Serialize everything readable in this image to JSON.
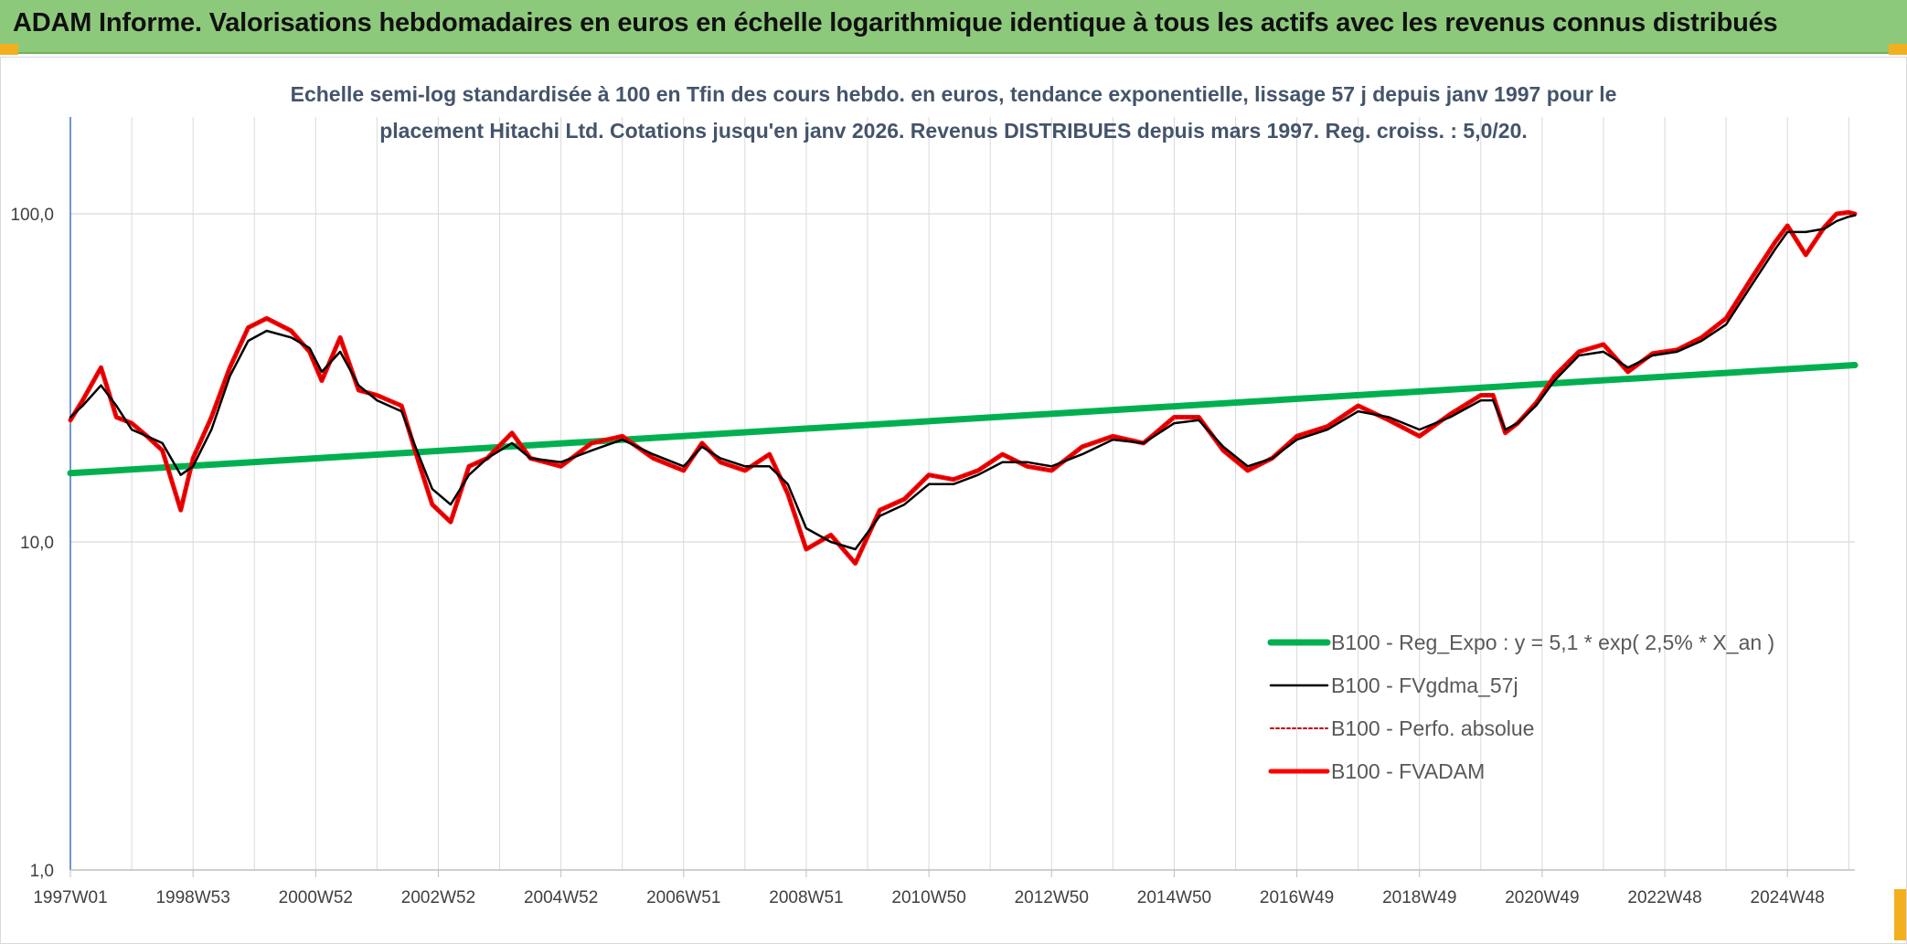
{
  "page": {
    "banner_title": "ADAM Informe. Valorisations hebdomadaires en euros en échelle logarithmique identique à tous les actifs avec les revenus connus distribués",
    "colors": {
      "banner_bg": "#8dc97b",
      "corner_accent": "#f2b01e",
      "regression": "#00b050",
      "moving_average": "#000000",
      "perf_absolue": "#c00000",
      "fvadam": "#ff0000",
      "grid": "#d9d9d9",
      "y_axis": "#4472c4"
    }
  },
  "chart_data": {
    "type": "line",
    "title_line1": "Echelle semi-log standardisée à 100 en Tfin des cours hebdo. en euros, tendance exponentielle, lissage 57 j depuis janv 1997 pour le",
    "title_line2": "placement Hitachi Ltd. Cotations jusqu'en janv 2026. Revenus DISTRIBUES depuis mars 1997. Reg. croiss. : 5,0/20.",
    "y_scale": "log",
    "ylim": [
      1,
      200
    ],
    "yticks": [
      {
        "value": 1,
        "label": "1,0"
      },
      {
        "value": 10,
        "label": "10,0"
      },
      {
        "value": 100,
        "label": "100,0"
      }
    ],
    "xlim": [
      1997.0,
      2026.1
    ],
    "xticks": [
      {
        "value": 1997.0,
        "label": "1997W01"
      },
      {
        "value": 1999.0,
        "label": "1998W53"
      },
      {
        "value": 2001.0,
        "label": "2000W52"
      },
      {
        "value": 2003.0,
        "label": "2002W52"
      },
      {
        "value": 2005.0,
        "label": "2004W52"
      },
      {
        "value": 2007.0,
        "label": "2006W51"
      },
      {
        "value": 2009.0,
        "label": "2008W51"
      },
      {
        "value": 2011.0,
        "label": "2010W50"
      },
      {
        "value": 2013.0,
        "label": "2012W50"
      },
      {
        "value": 2015.0,
        "label": "2014W50"
      },
      {
        "value": 2017.0,
        "label": "2016W49"
      },
      {
        "value": 2019.0,
        "label": "2018W49"
      },
      {
        "value": 2021.0,
        "label": "2020W49"
      },
      {
        "value": 2023.0,
        "label": "2022W48"
      },
      {
        "value": 2025.0,
        "label": "2024W48"
      }
    ],
    "grid": true,
    "legend_position": "bottom-right",
    "series": [
      {
        "name": "B100 - Reg_Expo : y = 5,1 * exp( 2,5% *  X_an )",
        "color": "#00b050",
        "style": "thick",
        "points": [
          [
            1997.0,
            16.2
          ],
          [
            2026.1,
            34.6
          ]
        ]
      },
      {
        "name": "B100 - FVgdma_57j",
        "color": "#000000",
        "style": "thin",
        "points": [
          [
            1997.0,
            24
          ],
          [
            1997.2,
            26
          ],
          [
            1997.5,
            30
          ],
          [
            1997.75,
            26
          ],
          [
            1998.0,
            22
          ],
          [
            1998.25,
            21
          ],
          [
            1998.5,
            20
          ],
          [
            1998.8,
            16
          ],
          [
            1999.0,
            17
          ],
          [
            1999.3,
            22
          ],
          [
            1999.6,
            32
          ],
          [
            1999.9,
            41
          ],
          [
            2000.2,
            44
          ],
          [
            2000.6,
            42
          ],
          [
            2000.9,
            39
          ],
          [
            2001.1,
            33
          ],
          [
            2001.4,
            38
          ],
          [
            2001.7,
            30
          ],
          [
            2002.0,
            27
          ],
          [
            2002.4,
            25
          ],
          [
            2002.7,
            18
          ],
          [
            2002.9,
            14.5
          ],
          [
            2003.2,
            13
          ],
          [
            2003.5,
            16
          ],
          [
            2003.8,
            18
          ],
          [
            2004.2,
            20
          ],
          [
            2004.5,
            18
          ],
          [
            2005.0,
            17.5
          ],
          [
            2005.5,
            19
          ],
          [
            2006.0,
            20.5
          ],
          [
            2006.5,
            18.5
          ],
          [
            2007.0,
            17
          ],
          [
            2007.3,
            19.5
          ],
          [
            2007.6,
            18
          ],
          [
            2008.0,
            17
          ],
          [
            2008.4,
            17
          ],
          [
            2008.7,
            15
          ],
          [
            2009.0,
            11
          ],
          [
            2009.4,
            10
          ],
          [
            2009.8,
            9.5
          ],
          [
            2010.2,
            12
          ],
          [
            2010.6,
            13
          ],
          [
            2011.0,
            15
          ],
          [
            2011.4,
            15
          ],
          [
            2011.8,
            16
          ],
          [
            2012.2,
            17.5
          ],
          [
            2012.6,
            17.5
          ],
          [
            2013.0,
            17
          ],
          [
            2013.5,
            18.5
          ],
          [
            2014.0,
            20.5
          ],
          [
            2014.5,
            20
          ],
          [
            2015.0,
            23
          ],
          [
            2015.4,
            23.5
          ],
          [
            2015.8,
            19.5
          ],
          [
            2016.2,
            17
          ],
          [
            2016.6,
            18
          ],
          [
            2017.0,
            20.5
          ],
          [
            2017.5,
            22
          ],
          [
            2018.0,
            25
          ],
          [
            2018.5,
            24
          ],
          [
            2019.0,
            22
          ],
          [
            2019.5,
            24
          ],
          [
            2020.0,
            27
          ],
          [
            2020.2,
            27
          ],
          [
            2020.4,
            22
          ],
          [
            2020.6,
            23
          ],
          [
            2020.9,
            26
          ],
          [
            2021.2,
            31
          ],
          [
            2021.6,
            37
          ],
          [
            2022.0,
            38
          ],
          [
            2022.4,
            34
          ],
          [
            2022.8,
            37
          ],
          [
            2023.2,
            38
          ],
          [
            2023.6,
            41
          ],
          [
            2024.0,
            46
          ],
          [
            2024.4,
            60
          ],
          [
            2024.8,
            78
          ],
          [
            2025.0,
            88
          ],
          [
            2025.3,
            88
          ],
          [
            2025.6,
            90
          ],
          [
            2025.8,
            95
          ],
          [
            2026.0,
            98
          ],
          [
            2026.1,
            99
          ]
        ]
      },
      {
        "name": "B100 - Perfo. absolue",
        "color": "#c00000",
        "style": "dotted",
        "points": [
          [
            1997.0,
            23.5
          ],
          [
            1997.2,
            27
          ],
          [
            1997.5,
            34
          ],
          [
            1997.75,
            24
          ],
          [
            1998.0,
            23
          ],
          [
            1998.25,
            21
          ],
          [
            1998.5,
            19
          ],
          [
            1998.8,
            12.5
          ],
          [
            1999.0,
            18
          ],
          [
            1999.3,
            24
          ],
          [
            1999.6,
            34
          ],
          [
            1999.9,
            45
          ],
          [
            2000.2,
            48
          ],
          [
            2000.6,
            44
          ],
          [
            2000.9,
            38
          ],
          [
            2001.1,
            31
          ],
          [
            2001.4,
            42
          ],
          [
            2001.7,
            29
          ],
          [
            2002.0,
            28
          ],
          [
            2002.4,
            26
          ],
          [
            2002.7,
            17
          ],
          [
            2002.9,
            13
          ],
          [
            2003.2,
            11.5
          ],
          [
            2003.5,
            17
          ],
          [
            2003.8,
            18
          ],
          [
            2004.2,
            21.5
          ],
          [
            2004.5,
            18
          ],
          [
            2005.0,
            17
          ],
          [
            2005.5,
            20
          ],
          [
            2006.0,
            21
          ],
          [
            2006.5,
            18
          ],
          [
            2007.0,
            16.5
          ],
          [
            2007.3,
            20
          ],
          [
            2007.6,
            17.5
          ],
          [
            2008.0,
            16.5
          ],
          [
            2008.4,
            18.5
          ],
          [
            2008.7,
            14
          ],
          [
            2009.0,
            9.5
          ],
          [
            2009.4,
            10.5
          ],
          [
            2009.8,
            8.6
          ],
          [
            2010.2,
            12.5
          ],
          [
            2010.6,
            13.5
          ],
          [
            2011.0,
            16
          ],
          [
            2011.4,
            15.5
          ],
          [
            2011.8,
            16.5
          ],
          [
            2012.2,
            18.5
          ],
          [
            2012.6,
            17
          ],
          [
            2013.0,
            16.5
          ],
          [
            2013.5,
            19.5
          ],
          [
            2014.0,
            21
          ],
          [
            2014.5,
            20
          ],
          [
            2015.0,
            24
          ],
          [
            2015.4,
            24
          ],
          [
            2015.8,
            19
          ],
          [
            2016.2,
            16.5
          ],
          [
            2016.6,
            18
          ],
          [
            2017.0,
            21
          ],
          [
            2017.5,
            22.5
          ],
          [
            2018.0,
            26
          ],
          [
            2018.5,
            23.5
          ],
          [
            2019.0,
            21
          ],
          [
            2019.5,
            24.5
          ],
          [
            2020.0,
            28
          ],
          [
            2020.2,
            28
          ],
          [
            2020.4,
            21.5
          ],
          [
            2020.6,
            23
          ],
          [
            2020.9,
            26.5
          ],
          [
            2021.2,
            32
          ],
          [
            2021.6,
            38
          ],
          [
            2022.0,
            40
          ],
          [
            2022.4,
            33
          ],
          [
            2022.8,
            37.5
          ],
          [
            2023.2,
            38.5
          ],
          [
            2023.6,
            42
          ],
          [
            2024.0,
            48
          ],
          [
            2024.4,
            63
          ],
          [
            2024.8,
            82
          ],
          [
            2025.0,
            92
          ],
          [
            2025.3,
            75
          ],
          [
            2025.6,
            91
          ],
          [
            2025.8,
            100
          ],
          [
            2026.0,
            101
          ],
          [
            2026.1,
            100
          ]
        ]
      },
      {
        "name": "B100 - FVADAM",
        "color": "#ff0000",
        "style": "thick",
        "points": [
          [
            1997.0,
            23.5
          ],
          [
            1997.2,
            27
          ],
          [
            1997.5,
            34
          ],
          [
            1997.75,
            24
          ],
          [
            1998.0,
            23
          ],
          [
            1998.25,
            21
          ],
          [
            1998.5,
            19
          ],
          [
            1998.8,
            12.5
          ],
          [
            1999.0,
            18
          ],
          [
            1999.3,
            24
          ],
          [
            1999.6,
            34
          ],
          [
            1999.9,
            45
          ],
          [
            2000.2,
            48
          ],
          [
            2000.6,
            44
          ],
          [
            2000.9,
            38
          ],
          [
            2001.1,
            31
          ],
          [
            2001.4,
            42
          ],
          [
            2001.7,
            29
          ],
          [
            2002.0,
            28
          ],
          [
            2002.4,
            26
          ],
          [
            2002.7,
            17
          ],
          [
            2002.9,
            13
          ],
          [
            2003.2,
            11.5
          ],
          [
            2003.5,
            17
          ],
          [
            2003.8,
            18
          ],
          [
            2004.2,
            21.5
          ],
          [
            2004.5,
            18
          ],
          [
            2005.0,
            17
          ],
          [
            2005.5,
            20
          ],
          [
            2006.0,
            21
          ],
          [
            2006.5,
            18
          ],
          [
            2007.0,
            16.5
          ],
          [
            2007.3,
            20
          ],
          [
            2007.6,
            17.5
          ],
          [
            2008.0,
            16.5
          ],
          [
            2008.4,
            18.5
          ],
          [
            2008.7,
            14
          ],
          [
            2009.0,
            9.5
          ],
          [
            2009.4,
            10.5
          ],
          [
            2009.8,
            8.6
          ],
          [
            2010.2,
            12.5
          ],
          [
            2010.6,
            13.5
          ],
          [
            2011.0,
            16
          ],
          [
            2011.4,
            15.5
          ],
          [
            2011.8,
            16.5
          ],
          [
            2012.2,
            18.5
          ],
          [
            2012.6,
            17
          ],
          [
            2013.0,
            16.5
          ],
          [
            2013.5,
            19.5
          ],
          [
            2014.0,
            21
          ],
          [
            2014.5,
            20
          ],
          [
            2015.0,
            24
          ],
          [
            2015.4,
            24
          ],
          [
            2015.8,
            19
          ],
          [
            2016.2,
            16.5
          ],
          [
            2016.6,
            18
          ],
          [
            2017.0,
            21
          ],
          [
            2017.5,
            22.5
          ],
          [
            2018.0,
            26
          ],
          [
            2018.5,
            23.5
          ],
          [
            2019.0,
            21
          ],
          [
            2019.5,
            24.5
          ],
          [
            2020.0,
            28
          ],
          [
            2020.2,
            28
          ],
          [
            2020.4,
            21.5
          ],
          [
            2020.6,
            23
          ],
          [
            2020.9,
            26.5
          ],
          [
            2021.2,
            32
          ],
          [
            2021.6,
            38
          ],
          [
            2022.0,
            40
          ],
          [
            2022.4,
            33
          ],
          [
            2022.8,
            37.5
          ],
          [
            2023.2,
            38.5
          ],
          [
            2023.6,
            42
          ],
          [
            2024.0,
            48
          ],
          [
            2024.4,
            63
          ],
          [
            2024.8,
            82
          ],
          [
            2025.0,
            92
          ],
          [
            2025.3,
            75
          ],
          [
            2025.6,
            91
          ],
          [
            2025.8,
            100
          ],
          [
            2026.0,
            101
          ],
          [
            2026.1,
            100
          ]
        ]
      }
    ]
  }
}
